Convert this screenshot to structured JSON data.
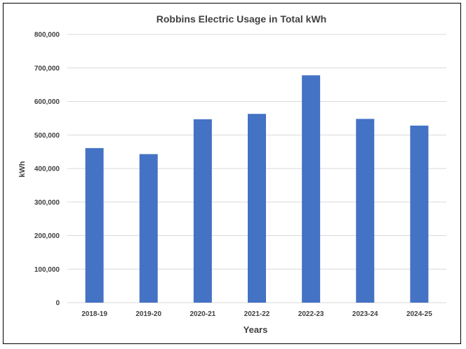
{
  "chart_data": {
    "type": "bar",
    "title": "Robbins Electric Usage in Total kWh",
    "xlabel": "Years",
    "ylabel": "kWh",
    "categories": [
      "2018-19",
      "2019-20",
      "2020-21",
      "2021-22",
      "2022-23",
      "2023-24",
      "2024-25"
    ],
    "values": [
      461000,
      443000,
      547000,
      563000,
      678000,
      548000,
      528000
    ],
    "ylim": [
      0,
      800000
    ],
    "y_ticks": [
      0,
      100000,
      200000,
      300000,
      400000,
      500000,
      600000,
      700000,
      800000
    ],
    "y_tick_labels": [
      "0",
      "100,000",
      "200,000",
      "300,000",
      "400,000",
      "500,000",
      "600,000",
      "700,000",
      "800,000"
    ],
    "grid": true,
    "bar_color": "#4472C4",
    "grid_color": "#D9D9D9"
  }
}
